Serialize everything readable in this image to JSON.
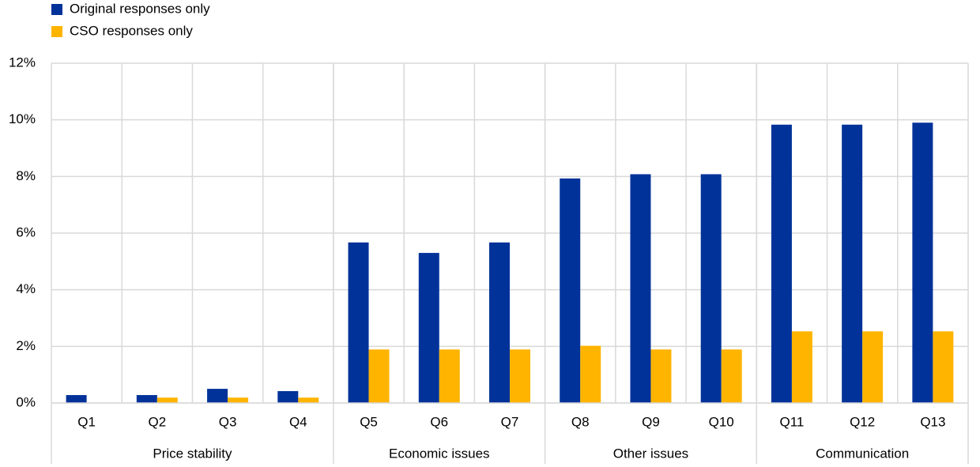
{
  "chart_data": {
    "type": "bar",
    "categories": [
      "Q1",
      "Q2",
      "Q3",
      "Q4",
      "Q5",
      "Q6",
      "Q7",
      "Q8",
      "Q9",
      "Q10",
      "Q11",
      "Q12",
      "Q13"
    ],
    "groups": [
      {
        "label": "Price stability",
        "size": 4
      },
      {
        "label": "Economic issues",
        "size": 3
      },
      {
        "label": "Other issues",
        "size": 3
      },
      {
        "label": "Communication",
        "size": 3
      }
    ],
    "series": [
      {
        "name": "Original responses only",
        "color": "#003299",
        "values": [
          0.28,
          0.28,
          0.5,
          0.42,
          5.67,
          5.3,
          5.67,
          7.93,
          8.08,
          8.08,
          9.83,
          9.83,
          9.9
        ]
      },
      {
        "name": "CSO responses only",
        "color": "#ffb400",
        "values": [
          0,
          0.19,
          0.19,
          0.19,
          1.89,
          1.89,
          1.89,
          2.02,
          1.89,
          1.89,
          2.53,
          2.53,
          2.53
        ]
      }
    ],
    "ylim": [
      0,
      12
    ],
    "yticks": [
      {
        "value": 0,
        "label": "0%"
      },
      {
        "value": 2,
        "label": "2%"
      },
      {
        "value": 4,
        "label": "4%"
      },
      {
        "value": 6,
        "label": "6%"
      },
      {
        "value": 8,
        "label": "8%"
      },
      {
        "value": 10,
        "label": "10%"
      },
      {
        "value": 12,
        "label": "12%"
      }
    ],
    "grid": true,
    "legend": "top-left"
  }
}
